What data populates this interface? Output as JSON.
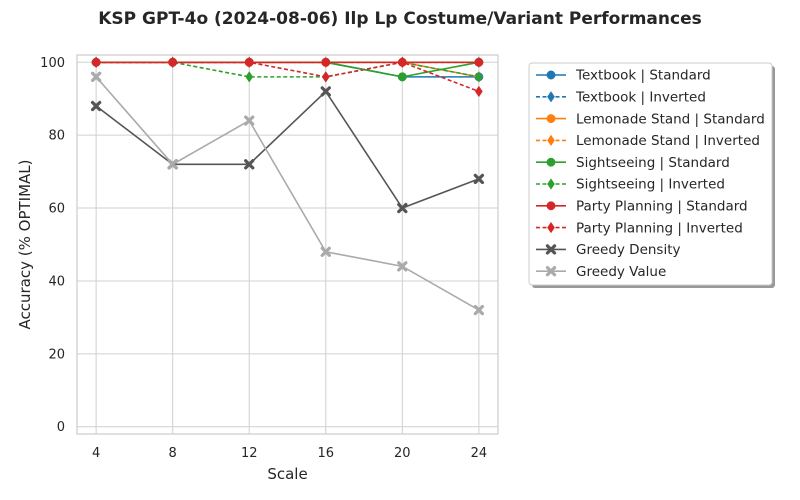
{
  "chart_data": {
    "type": "line",
    "title": "KSP GPT-4o (2024-08-06) Ilp Lp Costume/Variant Performances",
    "xlabel": "Scale",
    "ylabel": "Accuracy (% OPTIMAL)",
    "x": [
      4,
      8,
      12,
      16,
      20,
      24
    ],
    "xlim": [
      3,
      25
    ],
    "ylim": [
      -2,
      102
    ],
    "yticks": [
      0,
      20,
      40,
      60,
      80,
      100
    ],
    "grid": true,
    "legend_position": "outside-right",
    "series": [
      {
        "name": "Textbook | Standard",
        "values": [
          100,
          100,
          100,
          100,
          96,
          96
        ],
        "color": "#1f77b4",
        "dash": "solid",
        "marker": "circle"
      },
      {
        "name": "Textbook | Inverted",
        "values": [
          100,
          100,
          100,
          100,
          100,
          100
        ],
        "color": "#1f77b4",
        "dash": "dashed",
        "marker": "diamond"
      },
      {
        "name": "Lemonade Stand | Standard",
        "values": [
          100,
          100,
          100,
          100,
          100,
          100
        ],
        "color": "#ff7f0e",
        "dash": "solid",
        "marker": "circle"
      },
      {
        "name": "Lemonade Stand | Inverted",
        "values": [
          100,
          100,
          100,
          100,
          100,
          96
        ],
        "color": "#ff7f0e",
        "dash": "dashed",
        "marker": "diamond"
      },
      {
        "name": "Sightseeing | Standard",
        "values": [
          100,
          100,
          100,
          100,
          96,
          100
        ],
        "color": "#2ca02c",
        "dash": "solid",
        "marker": "circle"
      },
      {
        "name": "Sightseeing | Inverted",
        "values": [
          100,
          100,
          96,
          96,
          100,
          96
        ],
        "color": "#2ca02c",
        "dash": "dashed",
        "marker": "diamond"
      },
      {
        "name": "Party Planning | Standard",
        "values": [
          100,
          100,
          100,
          100,
          100,
          100
        ],
        "color": "#d62728",
        "dash": "solid",
        "marker": "circle"
      },
      {
        "name": "Party Planning | Inverted",
        "values": [
          100,
          100,
          100,
          96,
          100,
          92
        ],
        "color": "#d62728",
        "dash": "dashed",
        "marker": "diamond"
      },
      {
        "name": "Greedy Density",
        "values": [
          88,
          72,
          72,
          92,
          60,
          68
        ],
        "color": "#555555",
        "dash": "solid",
        "marker": "x"
      },
      {
        "name": "Greedy Value",
        "values": [
          96,
          72,
          84,
          48,
          44,
          32
        ],
        "color": "#aaaaaa",
        "dash": "solid",
        "marker": "x"
      }
    ]
  }
}
